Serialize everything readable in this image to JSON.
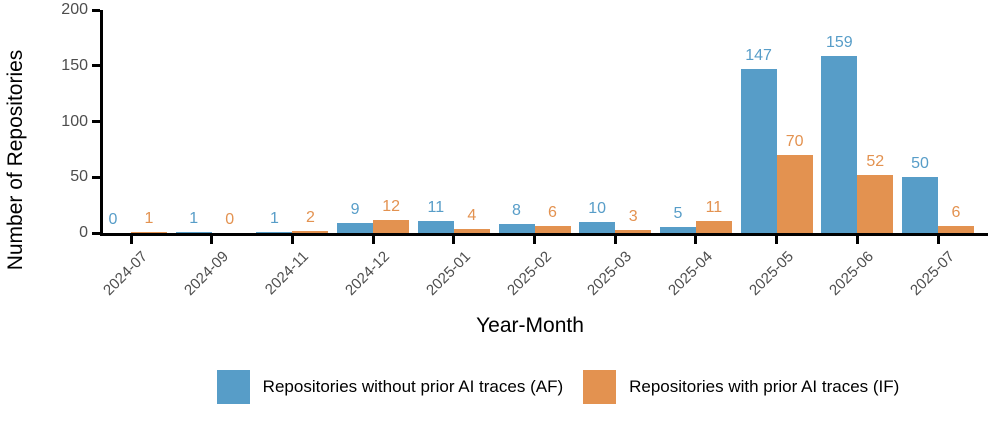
{
  "chart_data": {
    "type": "bar",
    "title": "",
    "xlabel": "Year-Month",
    "ylabel": "Number of Repositories",
    "categories": [
      "2024-07",
      "2024-09",
      "2024-11",
      "2024-12",
      "2025-01",
      "2025-02",
      "2025-03",
      "2025-04",
      "2025-05",
      "2025-06",
      "2025-07"
    ],
    "series": [
      {
        "name": "Repositories without prior AI traces (AF)",
        "color": "#579DC8",
        "values": [
          0,
          1,
          1,
          9,
          11,
          8,
          10,
          5,
          147,
          159,
          50
        ]
      },
      {
        "name": "Repositories with prior AI traces (IF)",
        "color": "#E39250",
        "values": [
          1,
          0,
          2,
          12,
          4,
          6,
          3,
          11,
          70,
          52,
          6
        ]
      }
    ],
    "ylim": [
      0,
      200
    ],
    "yticks": [
      0,
      50,
      100,
      150,
      200
    ],
    "grid": false,
    "legend_position": "bottom",
    "bar_value_labels": true,
    "colors": {
      "axis": "#000000",
      "tick_label": "#4d4d4d"
    }
  }
}
